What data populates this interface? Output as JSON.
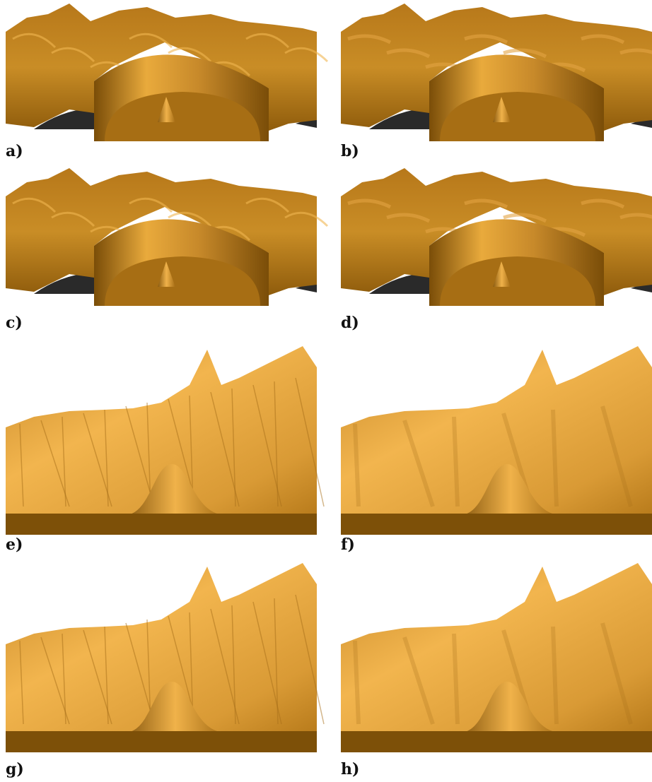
{
  "panels": [
    {
      "label": "a)"
    },
    {
      "label": "b)"
    },
    {
      "label": "c)"
    },
    {
      "label": "d)"
    },
    {
      "label": "e)"
    },
    {
      "label": "f)"
    },
    {
      "label": "g)"
    },
    {
      "label": "h)"
    }
  ]
}
